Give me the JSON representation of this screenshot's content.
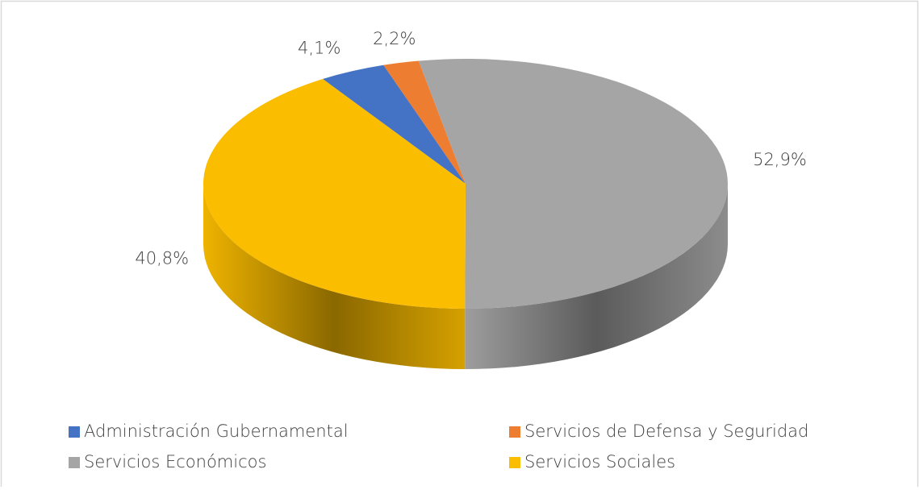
{
  "chart_data": {
    "type": "pie",
    "categories": [
      "Administración Gubernamental",
      "Servicios de Defensa y Seguridad",
      "Servicios Económicos",
      "Servicios Sociales"
    ],
    "values": [
      4.1,
      2.2,
      52.9,
      40.8
    ],
    "value_labels": [
      "4,1%",
      "2,2%",
      "52,9%",
      "40,8%"
    ],
    "colors": [
      "#4472c4",
      "#ed7d31",
      "#a5a5a5",
      "#fbbd00"
    ],
    "legend": "bottom"
  }
}
